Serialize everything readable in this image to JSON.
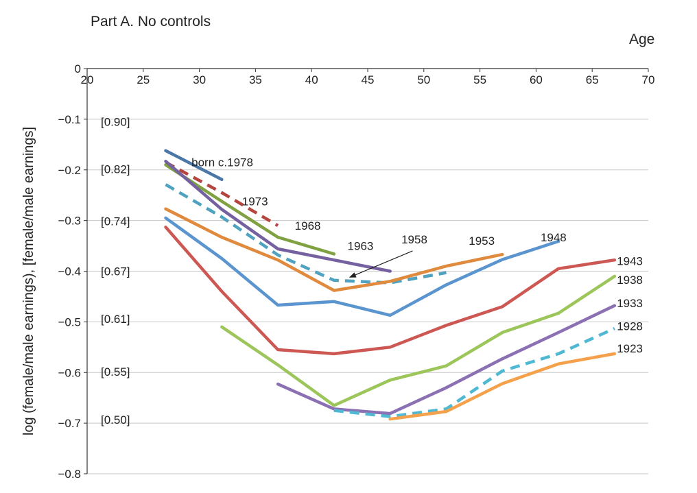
{
  "chart_data": {
    "type": "line",
    "title": "Part A. No controls",
    "xlabel": "Age",
    "ylabel": "log (female/male earnings),  [female/male earnings]",
    "xlim": [
      20,
      70
    ],
    "ylim": [
      -0.8,
      0
    ],
    "x_ticks": [
      "20",
      "25",
      "30",
      "35",
      "40",
      "45",
      "50",
      "55",
      "60",
      "65",
      "70"
    ],
    "y_ticks": [
      {
        "value": 0,
        "label": "0"
      },
      {
        "value": -0.1,
        "label": "−0.1"
      },
      {
        "value": -0.2,
        "label": "−0.2"
      },
      {
        "value": -0.3,
        "label": "−0.3"
      },
      {
        "value": -0.4,
        "label": "−0.4"
      },
      {
        "value": -0.5,
        "label": "−0.5"
      },
      {
        "value": -0.6,
        "label": "−0.6"
      },
      {
        "value": -0.7,
        "label": "−0.7"
      },
      {
        "value": -0.8,
        "label": "−0.8"
      }
    ],
    "ratio_labels": [
      {
        "value": -0.105,
        "label": "[0.90]"
      },
      {
        "value": -0.198,
        "label": "[0.82]"
      },
      {
        "value": -0.301,
        "label": "[0.74]"
      },
      {
        "value": -0.4,
        "label": "[0.67]"
      },
      {
        "value": -0.494,
        "label": "[0.61]"
      },
      {
        "value": -0.598,
        "label": "[0.55]"
      },
      {
        "value": -0.693,
        "label": "[0.50]"
      }
    ],
    "grid": true,
    "series": [
      {
        "name": "born c.1978",
        "color": "#4a76a8",
        "dash": false,
        "x": [
          27,
          32
        ],
        "y": [
          -0.162,
          -0.219
        ]
      },
      {
        "name": "1973",
        "color": "#b5463f",
        "dash": true,
        "x": [
          27,
          32,
          37
        ],
        "y": [
          -0.185,
          -0.245,
          -0.31
        ]
      },
      {
        "name": "1968",
        "color": "#7fa142",
        "dash": false,
        "x": [
          27,
          32,
          37,
          42
        ],
        "y": [
          -0.19,
          -0.262,
          -0.333,
          -0.366
        ]
      },
      {
        "name": "1963",
        "color": "#7560a0",
        "dash": false,
        "x": [
          27,
          32,
          37,
          42,
          47
        ],
        "y": [
          -0.183,
          -0.278,
          -0.356,
          -0.378,
          -0.4
        ]
      },
      {
        "name": "1958",
        "color": "#4fa2c0",
        "dash": true,
        "x": [
          27,
          32,
          37,
          42,
          47,
          52
        ],
        "y": [
          -0.229,
          -0.293,
          -0.368,
          -0.418,
          -0.423,
          -0.403
        ]
      },
      {
        "name": "1953",
        "color": "#e08a3d",
        "dash": false,
        "x": [
          27,
          32,
          37,
          42,
          47,
          52,
          57
        ],
        "y": [
          -0.277,
          -0.333,
          -0.378,
          -0.438,
          -0.42,
          -0.39,
          -0.367
        ]
      },
      {
        "name": "1948",
        "color": "#5b95cf",
        "dash": false,
        "x": [
          27,
          32,
          37,
          42,
          47,
          52,
          57,
          62
        ],
        "y": [
          -0.295,
          -0.375,
          -0.467,
          -0.46,
          -0.487,
          -0.427,
          -0.377,
          -0.341
        ]
      },
      {
        "name": "1943",
        "color": "#cd5752",
        "dash": false,
        "x": [
          27,
          32,
          37,
          42,
          47,
          52,
          57,
          62,
          67
        ],
        "y": [
          -0.313,
          -0.44,
          -0.555,
          -0.563,
          -0.55,
          -0.507,
          -0.47,
          -0.395,
          -0.378
        ]
      },
      {
        "name": "1938",
        "color": "#9cc55a",
        "dash": false,
        "x": [
          32,
          37,
          42,
          47,
          52,
          57,
          62,
          67
        ],
        "y": [
          -0.51,
          -0.585,
          -0.665,
          -0.615,
          -0.587,
          -0.521,
          -0.483,
          -0.41
        ]
      },
      {
        "name": "1933",
        "color": "#8b70b4",
        "dash": false,
        "x": [
          37,
          42,
          47,
          52,
          57,
          62,
          67
        ],
        "y": [
          -0.623,
          -0.672,
          -0.681,
          -0.63,
          -0.573,
          -0.521,
          -0.468
        ]
      },
      {
        "name": "1928",
        "color": "#4fb8d3",
        "dash": true,
        "x": [
          42,
          47,
          52,
          57,
          62,
          67
        ],
        "y": [
          -0.675,
          -0.687,
          -0.672,
          -0.597,
          -0.563,
          -0.513
        ]
      },
      {
        "name": "1923",
        "color": "#f5a04a",
        "dash": false,
        "x": [
          47,
          52,
          57,
          62,
          67
        ],
        "y": [
          -0.692,
          -0.677,
          -0.622,
          -0.583,
          -0.563
        ]
      }
    ],
    "annotations": [
      {
        "text": "born c.1978",
        "x": 29.3,
        "y": -0.185,
        "anchor": "start"
      },
      {
        "text": "1973",
        "x": 33.8,
        "y": -0.262,
        "anchor": "start"
      },
      {
        "text": "1968",
        "x": 38.5,
        "y": -0.31,
        "anchor": "start"
      },
      {
        "text": "1963",
        "x": 43.2,
        "y": -0.35,
        "anchor": "start"
      },
      {
        "text": "1958",
        "x": 48.0,
        "y": -0.337,
        "anchor": "start"
      },
      {
        "text": "1953",
        "x": 54.0,
        "y": -0.34,
        "anchor": "start"
      },
      {
        "text": "1948",
        "x": 60.4,
        "y": -0.333,
        "anchor": "start"
      },
      {
        "text": "1943",
        "x": 67.2,
        "y": -0.38,
        "anchor": "start"
      },
      {
        "text": "1938",
        "x": 67.2,
        "y": -0.417,
        "anchor": "start"
      },
      {
        "text": "1933",
        "x": 67.2,
        "y": -0.463,
        "anchor": "start"
      },
      {
        "text": "1928",
        "x": 67.2,
        "y": -0.508,
        "anchor": "start"
      },
      {
        "text": "1923",
        "x": 67.2,
        "y": -0.552,
        "anchor": "start"
      }
    ],
    "arrow": {
      "label": "1958",
      "from": [
        49.0,
        -0.36
      ],
      "to": [
        43.4,
        -0.412
      ]
    }
  }
}
